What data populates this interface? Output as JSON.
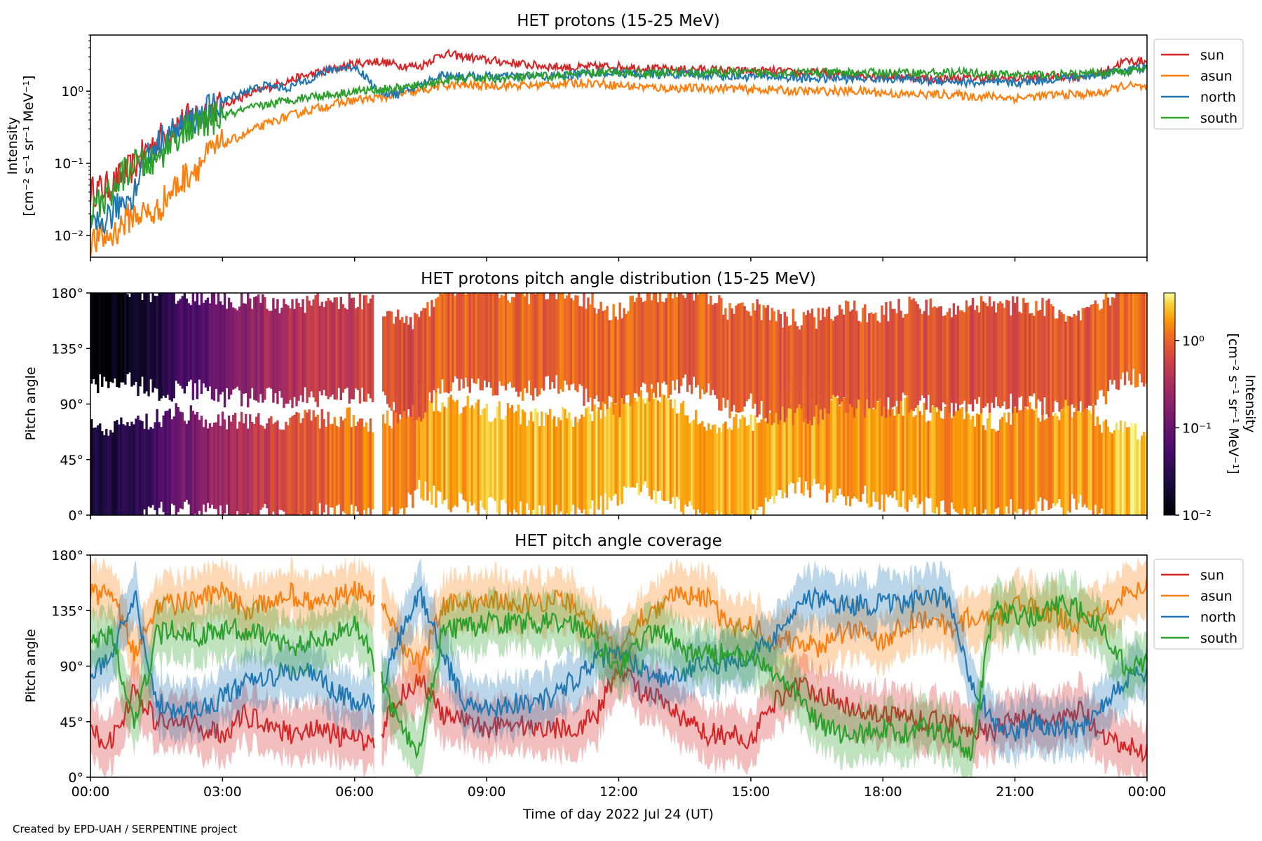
{
  "footer": "Created by EPD-UAH / SERPENTINE project",
  "colors": {
    "sun": "#d62728",
    "asun": "#ff7f0e",
    "north": "#1f77b4",
    "south": "#2ca02c"
  },
  "chart_data": [
    {
      "type": "line",
      "title": "HET protons (15-25 MeV)",
      "ylabel": "Intensity",
      "yunits": "[cm⁻² s⁻¹ sr⁻¹ MeV⁻¹]",
      "yscale": "log",
      "ylim": [
        0.005,
        6
      ],
      "yticks": [
        0.01,
        0.1,
        1
      ],
      "ytick_labels": [
        "10⁻²",
        "10⁻¹",
        "10⁰"
      ],
      "xlim": [
        0,
        24
      ],
      "legend": "outside-right-top",
      "x": [
        0,
        0.5,
        1,
        1.5,
        2,
        2.5,
        3,
        3.5,
        4,
        4.5,
        5,
        5.5,
        6,
        6.5,
        7,
        7.5,
        8,
        8.5,
        9,
        9.5,
        10,
        10.5,
        11,
        11.5,
        12,
        12.5,
        13,
        13.5,
        14,
        14.5,
        15,
        15.5,
        16,
        16.5,
        17,
        17.5,
        18,
        18.5,
        19,
        19.5,
        20,
        20.5,
        21,
        21.5,
        22,
        22.5,
        23,
        23.5,
        24
      ],
      "series": [
        {
          "name": "sun",
          "values": [
            0.04,
            0.05,
            0.09,
            0.2,
            0.35,
            0.5,
            0.65,
            0.85,
            1.1,
            1.4,
            1.7,
            2.0,
            2.4,
            2.6,
            2.3,
            2.2,
            3.3,
            3.0,
            2.7,
            2.5,
            2.3,
            2.2,
            2.1,
            2.2,
            2.2,
            2.1,
            2.0,
            2.0,
            2.0,
            1.9,
            1.9,
            1.9,
            1.8,
            1.8,
            1.7,
            1.7,
            1.6,
            1.6,
            1.5,
            1.5,
            1.5,
            1.5,
            1.5,
            1.5,
            1.6,
            1.6,
            1.8,
            2.6,
            2.6
          ]
        },
        {
          "name": "asun",
          "values": [
            0.008,
            0.01,
            0.02,
            0.02,
            0.05,
            0.1,
            0.18,
            0.25,
            0.35,
            0.45,
            0.55,
            0.65,
            0.75,
            0.8,
            0.9,
            1.0,
            1.2,
            1.2,
            1.2,
            1.2,
            1.2,
            1.25,
            1.3,
            1.3,
            1.2,
            1.15,
            1.1,
            1.1,
            1.1,
            1.1,
            1.05,
            1.05,
            1.0,
            1.0,
            1.0,
            1.0,
            0.95,
            0.9,
            0.9,
            0.9,
            0.85,
            0.85,
            0.8,
            0.85,
            0.9,
            0.9,
            0.95,
            1.2,
            1.1
          ]
        },
        {
          "name": "north",
          "values": [
            0.01,
            0.02,
            0.04,
            0.18,
            0.3,
            0.45,
            0.7,
            1.0,
            1.2,
            1.1,
            1.5,
            2.0,
            2.2,
            1.0,
            0.9,
            1.2,
            1.7,
            1.6,
            1.6,
            1.6,
            1.6,
            1.6,
            1.7,
            1.8,
            1.8,
            1.7,
            1.7,
            1.7,
            1.7,
            1.6,
            1.6,
            1.6,
            1.5,
            1.5,
            1.5,
            1.5,
            1.5,
            1.5,
            1.4,
            1.4,
            1.3,
            1.3,
            1.3,
            1.4,
            1.5,
            1.6,
            1.7,
            2.0,
            2.1
          ]
        },
        {
          "name": "south",
          "values": [
            0.02,
            0.04,
            0.1,
            0.1,
            0.25,
            0.35,
            0.45,
            0.55,
            0.65,
            0.75,
            0.85,
            0.9,
            1.0,
            1.05,
            1.1,
            1.2,
            1.4,
            1.5,
            1.5,
            1.5,
            1.6,
            1.6,
            1.7,
            1.8,
            1.8,
            1.8,
            1.8,
            1.8,
            1.8,
            1.8,
            1.8,
            1.8,
            1.8,
            1.8,
            1.8,
            1.8,
            1.8,
            1.8,
            1.8,
            1.8,
            1.8,
            1.7,
            1.7,
            1.7,
            1.7,
            1.7,
            1.8,
            1.9,
            2.0
          ]
        }
      ]
    },
    {
      "type": "heatmap",
      "title": "HET protons pitch angle distribution (15-25 MeV)",
      "ylabel": "Pitch angle",
      "ylim": [
        0,
        180
      ],
      "yticks": [
        0,
        45,
        90,
        135,
        180
      ],
      "ytick_labels": [
        "0°",
        "45°",
        "90°",
        "135°",
        "180°"
      ],
      "xlim": [
        0,
        24
      ],
      "colorscale": "inferno",
      "colorbar": {
        "label": "Intensity",
        "units": "[cm⁻² s⁻¹ sr⁻¹ MeV⁻¹]",
        "scale": "log",
        "range": [
          0.01,
          3.5
        ],
        "ticks": [
          0.01,
          0.1,
          1
        ],
        "tick_labels": [
          "10⁻²",
          "10⁻¹",
          "10⁰"
        ]
      },
      "bands": [
        {
          "name": "sun",
          "description_free": true,
          "center": [
            35,
            30,
            35,
            40,
            45,
            40,
            40,
            35,
            40,
            35,
            40,
            40,
            40,
            35,
            40,
            60,
            50,
            50,
            45,
            45,
            40,
            40,
            40,
            45,
            55,
            60,
            55,
            45,
            35,
            35,
            35,
            50,
            65,
            60,
            55,
            55,
            50,
            50,
            45,
            45,
            40,
            35,
            45,
            45,
            45,
            50,
            35,
            30,
            25
          ]
        },
        {
          "name": "asun",
          "center": [
            145,
            150,
            145,
            140,
            140,
            140,
            135,
            135,
            135,
            130,
            135,
            135,
            135,
            135,
            120,
            120,
            145,
            145,
            145,
            140,
            140,
            145,
            140,
            130,
            125,
            140,
            140,
            145,
            140,
            125,
            130,
            120,
            120,
            120,
            130,
            125,
            125,
            130,
            130,
            125,
            130,
            130,
            130,
            130,
            125,
            125,
            135,
            150,
            150
          ]
        }
      ],
      "intensity_profile": [
        0.012,
        0.015,
        0.02,
        0.03,
        0.06,
        0.1,
        0.16,
        0.25,
        0.35,
        0.45,
        0.55,
        0.65,
        0.75,
        0.85,
        0.9,
        1.0,
        1.2,
        1.3,
        1.3,
        1.3,
        1.3,
        1.3,
        1.3,
        1.35,
        1.35,
        1.3,
        1.25,
        1.25,
        1.25,
        1.2,
        1.2,
        1.2,
        1.15,
        1.15,
        1.1,
        1.1,
        1.1,
        1.1,
        1.05,
        1.05,
        1.0,
        1.0,
        1.0,
        1.05,
        1.1,
        1.1,
        1.15,
        1.4,
        1.5
      ],
      "gaps_hours": [
        [
          6.45,
          6.6
        ]
      ]
    },
    {
      "type": "line",
      "title": "HET pitch angle coverage",
      "ylabel": "Pitch angle",
      "xlabel": "Time of day 2022 Jul 24 (UT)",
      "ylim": [
        0,
        180
      ],
      "yticks": [
        0,
        45,
        90,
        135,
        180
      ],
      "ytick_labels": [
        "0°",
        "45°",
        "90°",
        "135°",
        "180°"
      ],
      "xlim": [
        0,
        24
      ],
      "xticks": [
        0,
        3,
        6,
        9,
        12,
        15,
        18,
        21,
        24
      ],
      "xtick_labels": [
        "00:00",
        "03:00",
        "06:00",
        "09:00",
        "12:00",
        "15:00",
        "18:00",
        "21:00",
        "00:00"
      ],
      "band_halfwidth_deg": 22,
      "legend": "outside-right-top",
      "gaps_hours": [
        [
          6.45,
          6.6
        ]
      ],
      "x": [
        0,
        0.5,
        1,
        1.5,
        2,
        2.5,
        3,
        3.5,
        4,
        4.5,
        5,
        5.5,
        6,
        6.5,
        7,
        7.5,
        8,
        8.5,
        9,
        9.5,
        10,
        10.5,
        11,
        11.5,
        12,
        12.5,
        13,
        13.5,
        14,
        14.5,
        15,
        15.5,
        16,
        16.5,
        17,
        17.5,
        18,
        18.5,
        19,
        19.5,
        20,
        20.5,
        21,
        21.5,
        22,
        22.5,
        23,
        23.5,
        24
      ],
      "series": [
        {
          "name": "sun",
          "values": [
            35,
            30,
            70,
            45,
            45,
            40,
            35,
            50,
            45,
            35,
            40,
            35,
            30,
            30,
            65,
            80,
            50,
            45,
            40,
            45,
            40,
            40,
            40,
            50,
            90,
            70,
            60,
            45,
            35,
            35,
            30,
            60,
            75,
            70,
            60,
            55,
            50,
            50,
            45,
            45,
            40,
            35,
            50,
            45,
            45,
            55,
            30,
            25,
            20
          ]
        },
        {
          "name": "asun",
          "values": [
            150,
            145,
            100,
            140,
            140,
            145,
            150,
            135,
            140,
            150,
            140,
            145,
            150,
            145,
            110,
            90,
            140,
            140,
            145,
            140,
            140,
            145,
            140,
            120,
            100,
            130,
            140,
            150,
            145,
            120,
            125,
            110,
            110,
            105,
            115,
            120,
            110,
            125,
            130,
            120,
            130,
            125,
            140,
            135,
            130,
            125,
            135,
            150,
            155
          ]
        },
        {
          "name": "north",
          "values": [
            80,
            100,
            150,
            60,
            55,
            55,
            65,
            75,
            80,
            85,
            85,
            70,
            60,
            60,
            110,
            150,
            100,
            60,
            55,
            60,
            60,
            65,
            80,
            95,
            100,
            90,
            80,
            85,
            90,
            95,
            100,
            110,
            140,
            145,
            140,
            140,
            140,
            140,
            145,
            145,
            80,
            45,
            35,
            45,
            40,
            40,
            60,
            80,
            85
          ]
        },
        {
          "name": "south",
          "values": [
            110,
            115,
            40,
            115,
            120,
            115,
            120,
            120,
            115,
            105,
            110,
            115,
            125,
            90,
            40,
            20,
            120,
            120,
            125,
            125,
            125,
            125,
            125,
            110,
            90,
            110,
            120,
            100,
            100,
            100,
            95,
            85,
            70,
            45,
            35,
            35,
            40,
            35,
            40,
            35,
            20,
            135,
            130,
            130,
            140,
            135,
            120,
            90,
            95
          ]
        }
      ]
    }
  ]
}
